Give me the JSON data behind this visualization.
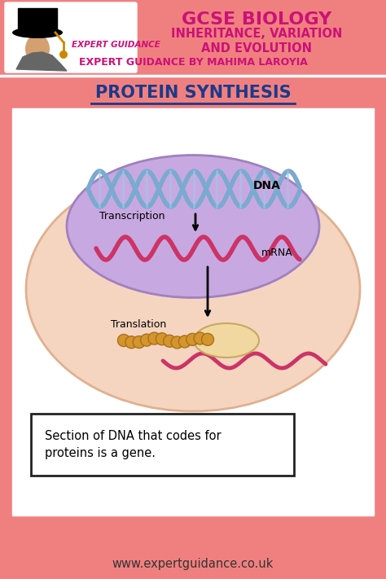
{
  "bg_color": "#F08080",
  "title_line1": "GCSE BIOLOGY",
  "title_line2": "INHERITANCE, VARIATION",
  "title_line3": "AND EVOLUTION",
  "title_line4": "EXPERT GUIDANCE BY MAHIMA LAROYIA",
  "title_color": "#CC1177",
  "section_title": "PROTEIN SYNTHESIS",
  "section_title_color": "#1a3a8a",
  "footer_text": "www.expertguidance.co.uk",
  "note_text": "Section of DNA that codes for\nproteins is a gene.",
  "dna_color1": "#7aaad0",
  "mrna_color": "#cc3366",
  "label_transcription": "Transcription",
  "label_dna": "DNA",
  "label_mrna": "mRNA",
  "label_translation": "Translation"
}
